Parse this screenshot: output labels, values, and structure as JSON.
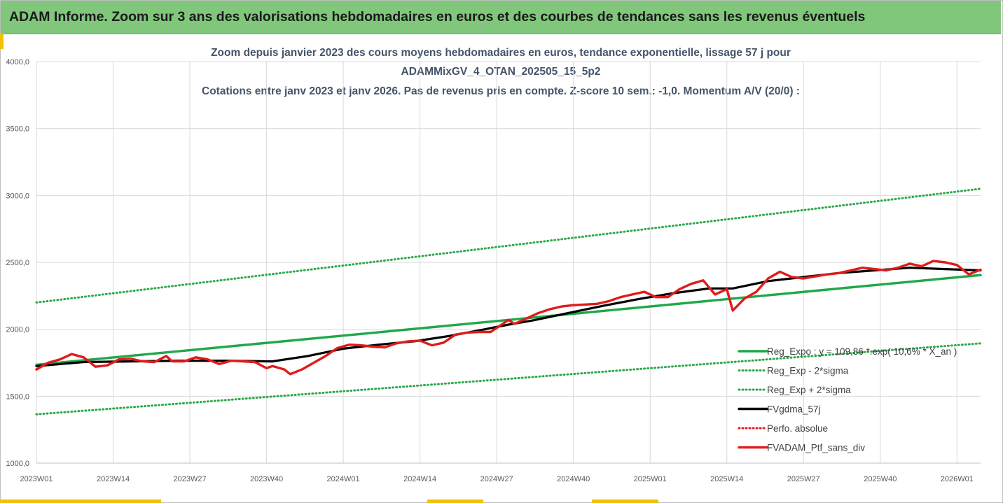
{
  "header": {
    "title": "ADAM Informe. Zoom sur 3 ans des valorisations hebdomadaires en euros et des courbes de tendances sans les revenus éventuels",
    "background_color": "#80c77c"
  },
  "chart_data": {
    "type": "line",
    "title_lines": [
      "Zoom depuis janvier 2023 des cours moyens hebdomadaires  en euros, tendance exponentielle, lissage 57 j pour",
      "ADAMMixGV_4_OTAN_202505_15_5p2",
      "Cotations entre janv 2023 et janv 2026. Pas de revenus pris en compte. Z-score 10 sem.: -1,0. Momentum A/V (20/0) :"
    ],
    "ylim": [
      1000,
      4000
    ],
    "y_ticks": [
      "4000,0",
      "3500,0",
      "3000,0",
      "2500,0",
      "2000,0",
      "1500,0",
      "1000,0"
    ],
    "y_tick_values": [
      4000,
      3500,
      3000,
      2500,
      2000,
      1500,
      1000
    ],
    "xlim": [
      0,
      160
    ],
    "x_ticks": [
      "2023W01",
      "2023W14",
      "2023W27",
      "2023W40",
      "2024W01",
      "2024W14",
      "2024W27",
      "2024W40",
      "2025W01",
      "2025W14",
      "2025W27",
      "2025W40",
      "2026W01"
    ],
    "x_tick_positions": [
      0,
      13,
      26,
      39,
      52,
      65,
      78,
      91,
      104,
      117,
      130,
      143,
      156
    ],
    "grid": true,
    "legend_position": "bottom-right",
    "series": [
      {
        "name": "Reg_Expo : y = 109,86 *.exp( 10,6% * X_an )",
        "color": "#1fa84a",
        "style": "solid",
        "x": [
          0,
          160
        ],
        "values": [
          1735,
          2405
        ]
      },
      {
        "name": "Reg_Exp - 2*sigma",
        "color": "#2aa84a",
        "style": "dotted",
        "x": [
          0,
          160
        ],
        "values": [
          1365,
          1895
        ]
      },
      {
        "name": "Reg_Exp + 2*sigma",
        "color": "#2aa84a",
        "style": "dotted",
        "x": [
          0,
          160
        ],
        "values": [
          2200,
          3050
        ]
      },
      {
        "name": "FVgdma_57j",
        "color": "#000000",
        "style": "solid",
        "x": [
          0,
          8,
          16,
          24,
          32,
          40,
          46,
          52,
          58,
          64,
          70,
          76,
          80,
          84,
          90,
          96,
          102,
          108,
          114,
          118,
          124,
          130,
          136,
          142,
          148,
          154,
          160
        ],
        "values": [
          1725,
          1755,
          1760,
          1765,
          1765,
          1760,
          1800,
          1855,
          1885,
          1910,
          1950,
          2000,
          2035,
          2065,
          2120,
          2175,
          2225,
          2270,
          2305,
          2305,
          2360,
          2390,
          2420,
          2440,
          2460,
          2450,
          2440
        ]
      },
      {
        "name": "Perfo. absolue",
        "color": "#e01b1b",
        "style": "dotted",
        "x": [],
        "values": []
      },
      {
        "name": "FVADAM_Ptf_sans_div",
        "color": "#e01b1b",
        "style": "solid",
        "x": [
          0,
          2,
          4,
          6,
          8,
          10,
          12,
          14,
          16,
          18,
          20,
          22,
          23,
          25,
          27,
          29,
          31,
          33,
          35,
          37,
          39,
          40,
          42,
          43,
          45,
          47,
          49,
          51,
          53,
          55,
          57,
          59,
          61,
          63,
          65,
          67,
          69,
          71,
          73,
          75,
          77,
          79,
          80,
          81,
          83,
          85,
          87,
          89,
          91,
          93,
          95,
          97,
          99,
          101,
          103,
          105,
          107,
          109,
          111,
          113,
          115,
          117,
          118,
          120,
          122,
          124,
          126,
          128,
          130,
          132,
          134,
          136,
          138,
          140,
          142,
          144,
          146,
          148,
          150,
          152,
          154,
          156,
          158,
          160
        ],
        "values": [
          1700,
          1750,
          1775,
          1815,
          1790,
          1720,
          1730,
          1775,
          1780,
          1760,
          1755,
          1800,
          1760,
          1760,
          1790,
          1775,
          1740,
          1765,
          1760,
          1755,
          1710,
          1725,
          1700,
          1665,
          1700,
          1750,
          1800,
          1860,
          1885,
          1880,
          1870,
          1865,
          1895,
          1910,
          1915,
          1880,
          1900,
          1960,
          1975,
          1980,
          1980,
          2040,
          2070,
          2040,
          2080,
          2120,
          2150,
          2170,
          2180,
          2185,
          2190,
          2210,
          2240,
          2260,
          2280,
          2240,
          2240,
          2300,
          2340,
          2365,
          2260,
          2300,
          2140,
          2230,
          2280,
          2380,
          2430,
          2390,
          2380,
          2395,
          2410,
          2420,
          2440,
          2460,
          2450,
          2440,
          2460,
          2490,
          2470,
          2510,
          2500,
          2480,
          2410,
          2445
        ]
      }
    ]
  }
}
